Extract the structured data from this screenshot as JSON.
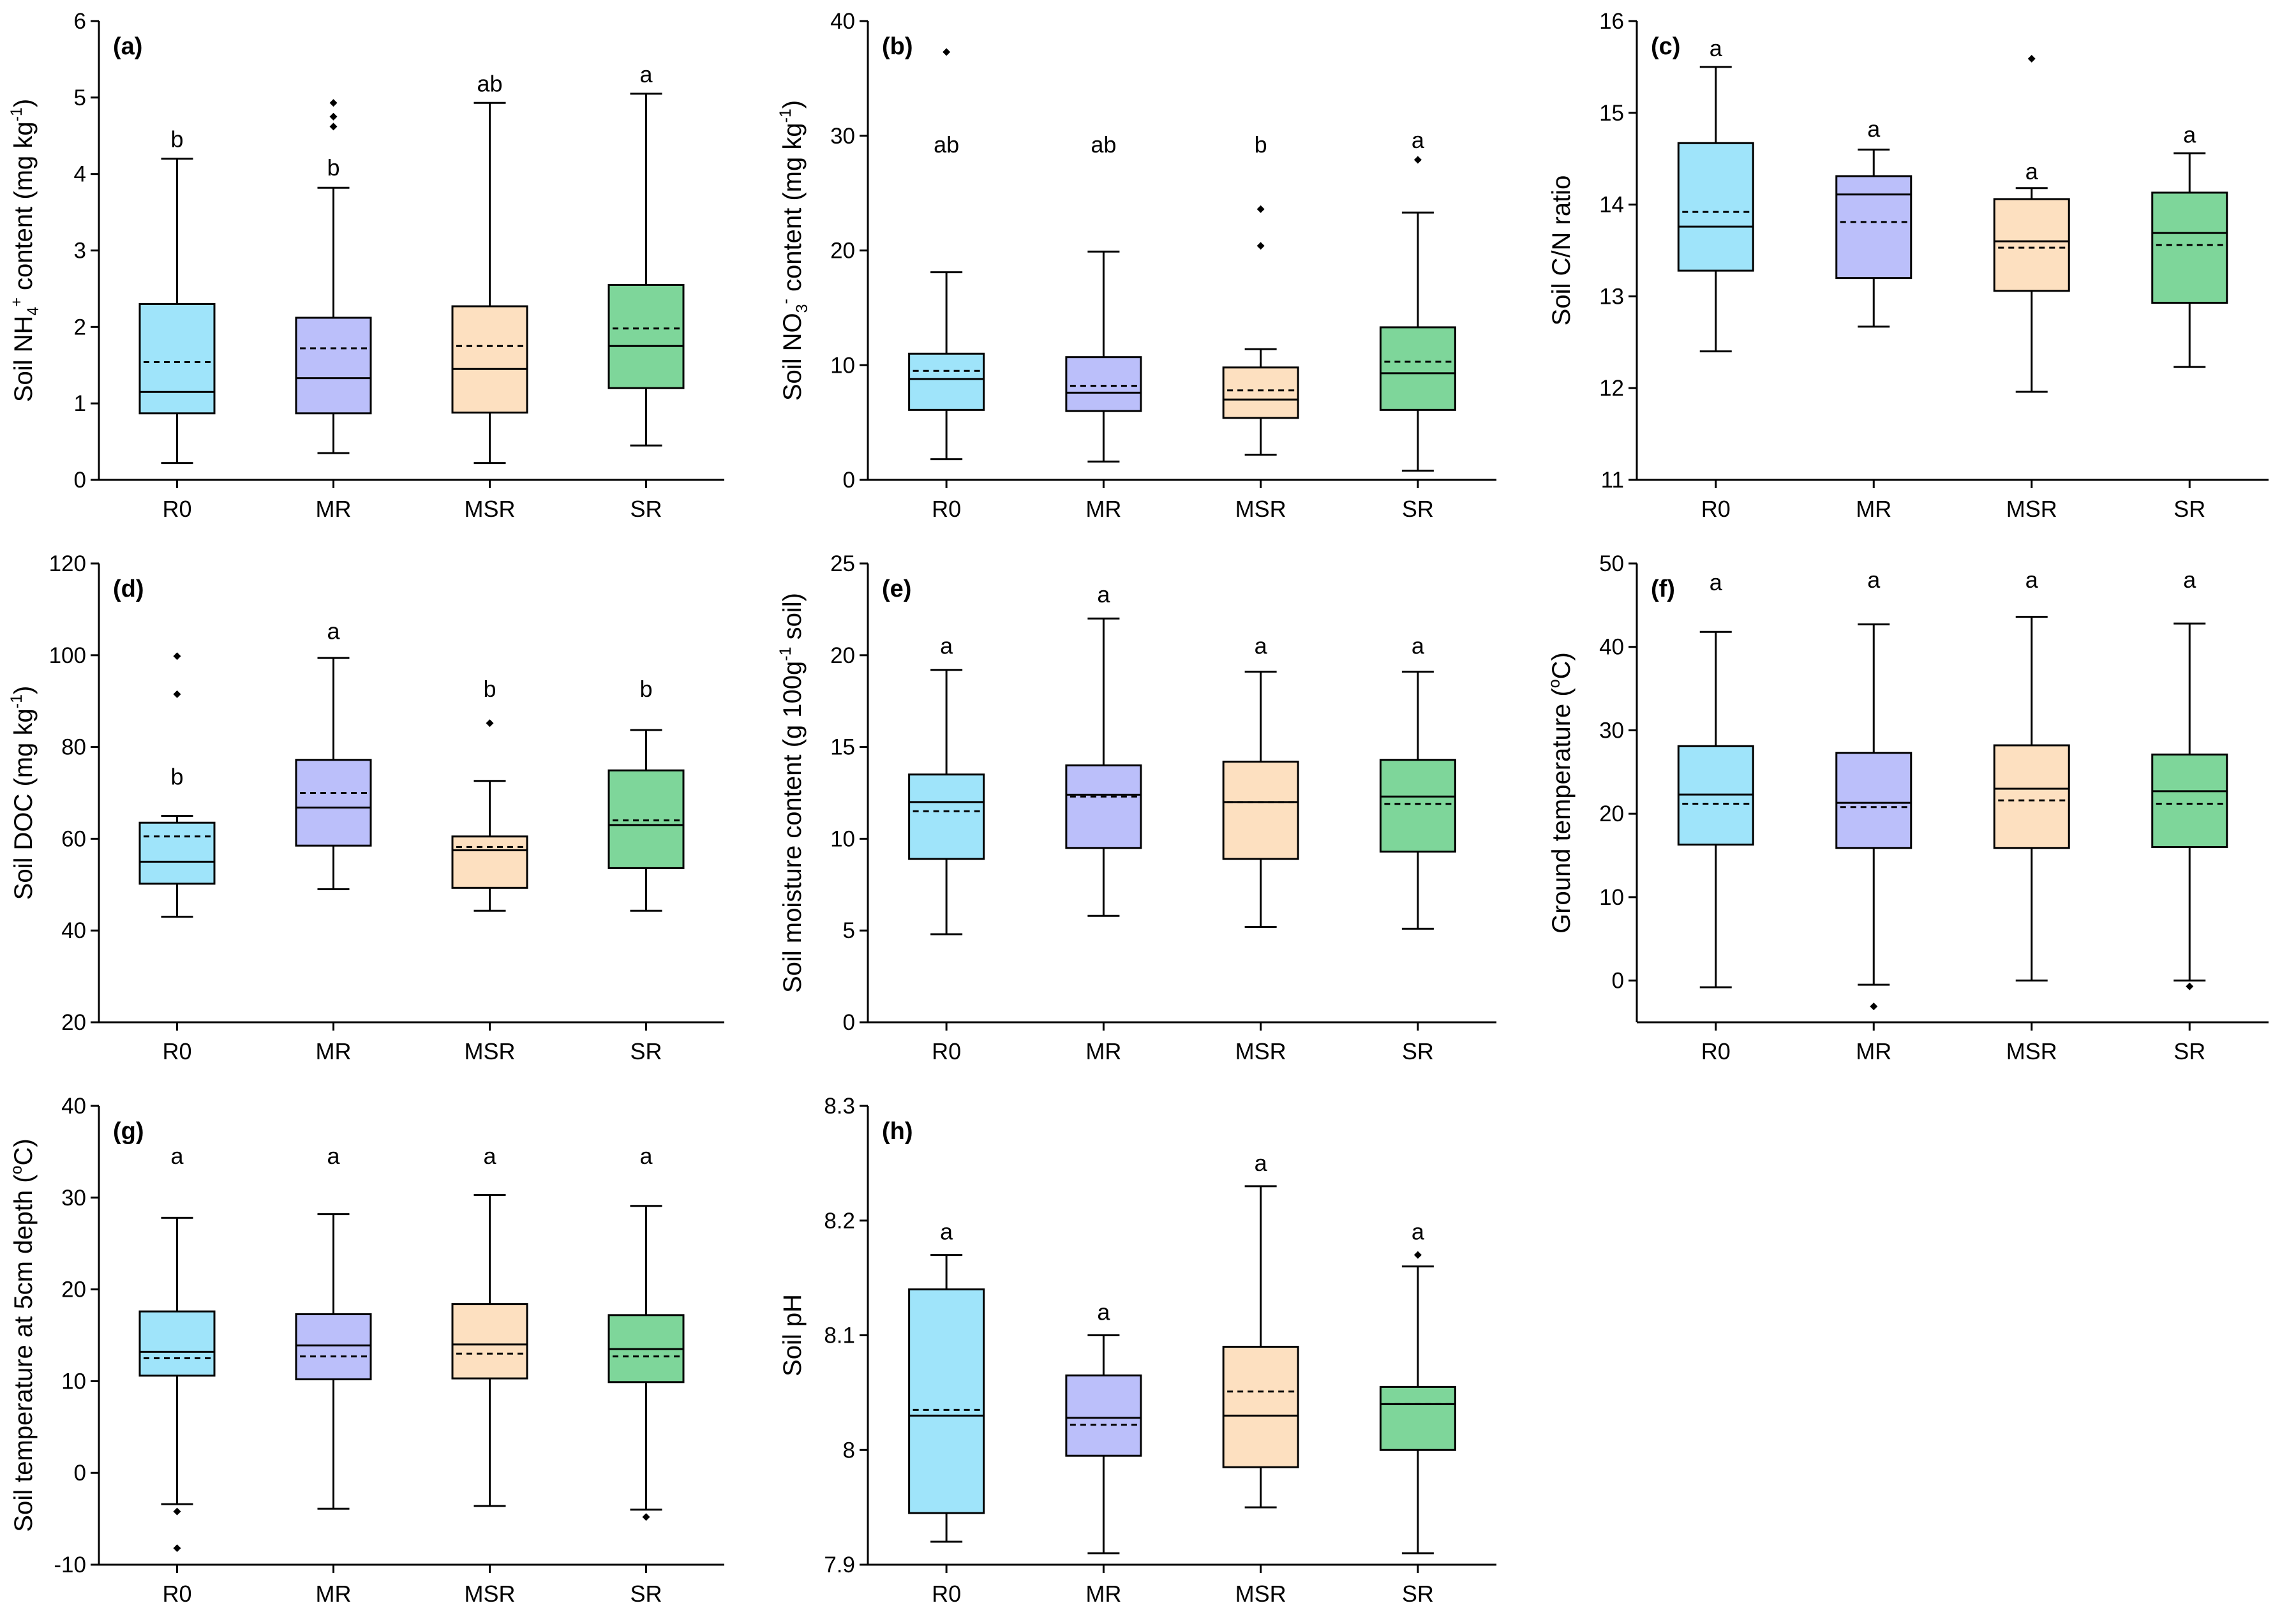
{
  "colors": {
    "R0": "#9fe4fa",
    "MR": "#bbbffa",
    "MSR": "#fde0c0",
    "SR": "#7ed69a"
  },
  "chart_data": [
    {
      "id": "a",
      "type": "box",
      "panel_label": "(a)",
      "ylabel": {
        "prefix": "Soil NH",
        "sub": "4",
        "sup": "+",
        "suffix": " content (mg kg",
        "unit_sup": "-1",
        "end": ")"
      },
      "ylim": [
        0,
        6
      ],
      "yticks": [
        0,
        1,
        2,
        3,
        4,
        5,
        6
      ],
      "categories": [
        "R0",
        "MR",
        "MSR",
        "SR"
      ],
      "boxes": [
        {
          "min": 0.22,
          "q1": 0.87,
          "median": 1.15,
          "mean": 1.54,
          "q3": 2.3,
          "max": 4.2,
          "outliers": [],
          "sig": "b",
          "sig_y": 4.45
        },
        {
          "min": 0.35,
          "q1": 0.87,
          "median": 1.33,
          "mean": 1.72,
          "q3": 2.12,
          "max": 3.82,
          "outliers": [
            4.62,
            4.75,
            4.93
          ],
          "sig": "b",
          "sig_y": 4.08
        },
        {
          "min": 0.22,
          "q1": 0.88,
          "median": 1.45,
          "mean": 1.75,
          "q3": 2.27,
          "max": 4.93,
          "outliers": [],
          "sig": "ab",
          "sig_y": 5.18
        },
        {
          "min": 0.45,
          "q1": 1.2,
          "median": 1.75,
          "mean": 1.98,
          "q3": 2.55,
          "max": 5.05,
          "outliers": [],
          "sig": "a",
          "sig_y": 5.3
        }
      ]
    },
    {
      "id": "b",
      "type": "box",
      "panel_label": "(b)",
      "ylabel": {
        "prefix": "Soil NO",
        "sub": "3",
        "sup": "-",
        "suffix": " content (mg kg",
        "unit_sup": "-1",
        "end": ")"
      },
      "ylim": [
        0,
        40
      ],
      "yticks": [
        0,
        10,
        20,
        30,
        40
      ],
      "categories": [
        "R0",
        "MR",
        "MSR",
        "SR"
      ],
      "boxes": [
        {
          "min": 1.8,
          "q1": 6.1,
          "median": 8.8,
          "mean": 9.5,
          "q3": 11.0,
          "max": 18.1,
          "outliers": [
            37.3
          ],
          "sig": "ab",
          "sig_y": 29.2
        },
        {
          "min": 1.6,
          "q1": 6.0,
          "median": 7.6,
          "mean": 8.2,
          "q3": 10.7,
          "max": 19.9,
          "outliers": [],
          "sig": "ab",
          "sig_y": 29.2
        },
        {
          "min": 2.2,
          "q1": 5.4,
          "median": 7.0,
          "mean": 7.8,
          "q3": 9.8,
          "max": 11.4,
          "outliers": [
            20.4,
            23.6
          ],
          "sig": "b",
          "sig_y": 29.2
        },
        {
          "min": 0.8,
          "q1": 6.1,
          "median": 9.3,
          "mean": 10.3,
          "q3": 13.3,
          "max": 23.3,
          "outliers": [
            27.9
          ],
          "sig": "a",
          "sig_y": 29.6
        }
      ]
    },
    {
      "id": "c",
      "type": "box",
      "panel_label": "(c)",
      "ylabel": {
        "text": "Soil C/N ratio"
      },
      "ylim": [
        11,
        16
      ],
      "yticks": [
        11,
        12,
        13,
        14,
        15,
        16
      ],
      "categories": [
        "R0",
        "MR",
        "MSR",
        "SR"
      ],
      "boxes": [
        {
          "min": 12.4,
          "q1": 13.28,
          "median": 13.76,
          "mean": 13.92,
          "q3": 14.67,
          "max": 15.5,
          "outliers": [],
          "sig": "a",
          "sig_y": 15.7
        },
        {
          "min": 12.67,
          "q1": 13.2,
          "median": 14.11,
          "mean": 13.81,
          "q3": 14.31,
          "max": 14.6,
          "outliers": [],
          "sig": "a",
          "sig_y": 14.82
        },
        {
          "min": 11.96,
          "q1": 13.06,
          "median": 13.6,
          "mean": 13.53,
          "q3": 14.06,
          "max": 14.18,
          "outliers": [
            15.59
          ],
          "sig": "a",
          "sig_y": 14.36
        },
        {
          "min": 12.23,
          "q1": 12.93,
          "median": 13.69,
          "mean": 13.56,
          "q3": 14.13,
          "max": 14.56,
          "outliers": [],
          "sig": "a",
          "sig_y": 14.76
        }
      ]
    },
    {
      "id": "d",
      "type": "box",
      "panel_label": "(d)",
      "ylabel": {
        "prefix": "Soil DOC (mg kg",
        "unit_sup": "-1",
        "end": ")"
      },
      "ylim": [
        20,
        120
      ],
      "yticks": [
        20,
        40,
        60,
        80,
        100,
        120
      ],
      "categories": [
        "R0",
        "MR",
        "MSR",
        "SR"
      ],
      "boxes": [
        {
          "min": 43,
          "q1": 50.2,
          "median": 55,
          "mean": 60.5,
          "q3": 63.5,
          "max": 65,
          "outliers": [
            91.5,
            99.8
          ],
          "sig": "b",
          "sig_y": 73.5
        },
        {
          "min": 49,
          "q1": 58.5,
          "median": 66.8,
          "mean": 70,
          "q3": 77.2,
          "max": 99.4,
          "outliers": [],
          "sig": "a",
          "sig_y": 105.2
        },
        {
          "min": 44.3,
          "q1": 49.3,
          "median": 57.5,
          "mean": 58.2,
          "q3": 60.5,
          "max": 72.6,
          "outliers": [
            85.2
          ],
          "sig": "b",
          "sig_y": 92.6
        },
        {
          "min": 44.3,
          "q1": 53.6,
          "median": 63,
          "mean": 64,
          "q3": 74.9,
          "max": 83.7,
          "outliers": [],
          "sig": "b",
          "sig_y": 92.6
        }
      ]
    },
    {
      "id": "e",
      "type": "box",
      "panel_label": "(e)",
      "ylabel": {
        "prefix": "Soil moisture content (g 100g",
        "unit_sup": "-1",
        "end": " soil)"
      },
      "ylim": [
        0,
        25
      ],
      "yticks": [
        0,
        5,
        10,
        15,
        20,
        25
      ],
      "categories": [
        "R0",
        "MR",
        "MSR",
        "SR"
      ],
      "boxes": [
        {
          "min": 4.8,
          "q1": 8.9,
          "median": 12.0,
          "mean": 11.5,
          "q3": 13.5,
          "max": 19.2,
          "outliers": [],
          "sig": "a",
          "sig_y": 20.5
        },
        {
          "min": 5.8,
          "q1": 9.5,
          "median": 12.4,
          "mean": 12.3,
          "q3": 14.0,
          "max": 22.0,
          "outliers": [],
          "sig": "a",
          "sig_y": 23.3
        },
        {
          "min": 5.2,
          "q1": 8.9,
          "median": 12.0,
          "mean": 12.0,
          "q3": 14.2,
          "max": 19.1,
          "outliers": [],
          "sig": "a",
          "sig_y": 20.5
        },
        {
          "min": 5.1,
          "q1": 9.3,
          "median": 12.3,
          "mean": 11.9,
          "q3": 14.3,
          "max": 19.1,
          "outliers": [],
          "sig": "a",
          "sig_y": 20.5
        }
      ]
    },
    {
      "id": "f",
      "type": "box",
      "panel_label": "(f)",
      "ylabel": {
        "prefix": "Ground temperature (",
        "unit_sup": "o",
        "end": "C)"
      },
      "ylim": [
        -5,
        50
      ],
      "yticks": [
        0,
        10,
        20,
        30,
        40,
        50
      ],
      "categories": [
        "R0",
        "MR",
        "MSR",
        "SR"
      ],
      "boxes": [
        {
          "min": -0.8,
          "q1": 16.3,
          "median": 22.3,
          "mean": 21.2,
          "q3": 28.1,
          "max": 41.8,
          "outliers": [],
          "sig": "a",
          "sig_y": 47.7
        },
        {
          "min": -0.5,
          "q1": 15.9,
          "median": 21.3,
          "mean": 20.8,
          "q3": 27.3,
          "max": 42.7,
          "outliers": [
            -3.1
          ],
          "sig": "a",
          "sig_y": 48
        },
        {
          "min": 0.0,
          "q1": 15.9,
          "median": 23.0,
          "mean": 21.6,
          "q3": 28.2,
          "max": 43.6,
          "outliers": [],
          "sig": "a",
          "sig_y": 48
        },
        {
          "min": 0.0,
          "q1": 16.0,
          "median": 22.7,
          "mean": 21.2,
          "q3": 27.1,
          "max": 42.8,
          "outliers": [
            -0.7
          ],
          "sig": "a",
          "sig_y": 48
        }
      ]
    },
    {
      "id": "g",
      "type": "box",
      "panel_label": "(g)",
      "ylabel": {
        "prefix": "Soil temperature at 5cm depth (",
        "unit_sup": "o",
        "end": "C)"
      },
      "ylim": [
        -10,
        40
      ],
      "yticks": [
        -10,
        0,
        10,
        20,
        30,
        40
      ],
      "categories": [
        "R0",
        "MR",
        "MSR",
        "SR"
      ],
      "boxes": [
        {
          "min": -3.4,
          "q1": 10.6,
          "median": 13.2,
          "mean": 12.5,
          "q3": 17.6,
          "max": 27.8,
          "outliers": [
            -4.2,
            -8.2
          ],
          "sig": "a",
          "sig_y": 34.5
        },
        {
          "min": -3.9,
          "q1": 10.2,
          "median": 13.9,
          "mean": 12.7,
          "q3": 17.3,
          "max": 28.2,
          "outliers": [],
          "sig": "a",
          "sig_y": 34.5
        },
        {
          "min": -3.6,
          "q1": 10.3,
          "median": 14.0,
          "mean": 13.0,
          "q3": 18.4,
          "max": 30.3,
          "outliers": [],
          "sig": "a",
          "sig_y": 34.5
        },
        {
          "min": -4.0,
          "q1": 9.9,
          "median": 13.5,
          "mean": 12.7,
          "q3": 17.2,
          "max": 29.1,
          "outliers": [
            -4.8
          ],
          "sig": "a",
          "sig_y": 34.5
        }
      ]
    },
    {
      "id": "h",
      "type": "box",
      "panel_label": "(h)",
      "ylabel": {
        "text": "Soil pH"
      },
      "ylim": [
        7.9,
        8.3
      ],
      "yticks": [
        7.9,
        8.0,
        8.1,
        8.2,
        8.3
      ],
      "categories": [
        "R0",
        "MR",
        "MSR",
        "SR"
      ],
      "boxes": [
        {
          "min": 7.92,
          "q1": 7.945,
          "median": 8.03,
          "mean": 8.035,
          "q3": 8.14,
          "max": 8.17,
          "outliers": [],
          "sig": "a",
          "sig_y": 8.19
        },
        {
          "min": 7.91,
          "q1": 7.995,
          "median": 8.028,
          "mean": 8.022,
          "q3": 8.065,
          "max": 8.1,
          "outliers": [],
          "sig": "a",
          "sig_y": 8.12
        },
        {
          "min": 7.95,
          "q1": 7.985,
          "median": 8.03,
          "mean": 8.051,
          "q3": 8.09,
          "max": 8.23,
          "outliers": [],
          "sig": "a",
          "sig_y": 8.25
        },
        {
          "min": 7.91,
          "q1": 8.0,
          "median": 8.04,
          "mean": 8.04,
          "q3": 8.055,
          "max": 8.16,
          "outliers": [
            8.17
          ],
          "sig": "a",
          "sig_y": 8.19
        }
      ]
    }
  ]
}
